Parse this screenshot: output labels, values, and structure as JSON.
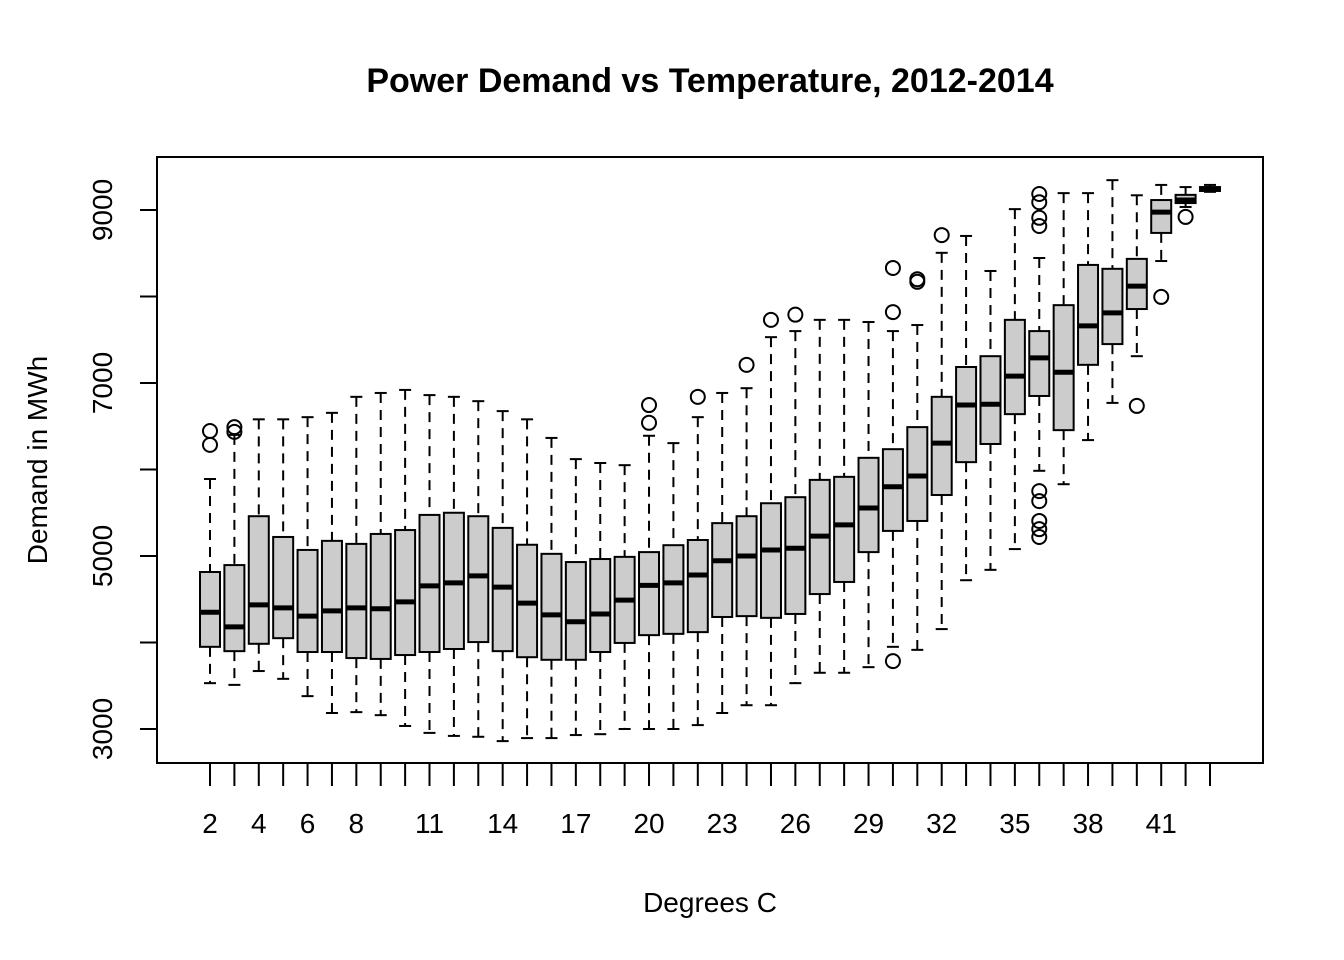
{
  "chart_data": {
    "type": "boxplot",
    "title": "Power Demand vs Temperature, 2012-2014",
    "xlabel": "Degrees C",
    "ylabel": "Demand in MWh",
    "ylim": [
      2620,
      9620
    ],
    "y_ticks": [
      3000,
      5000,
      7000,
      9000
    ],
    "y_tick_labels": [
      "3000",
      "5000",
      "7000",
      "9000"
    ],
    "y_minor_ticks": [
      4000,
      6000,
      8000
    ],
    "x_tick_labels_shown": [
      "2",
      "4",
      "6",
      "8",
      "11",
      "14",
      "17",
      "20",
      "23",
      "26",
      "29",
      "32",
      "35",
      "38",
      "41"
    ],
    "grid": false,
    "colors": {
      "box_fill": "#cccccc",
      "stroke": "#000000",
      "background": "#ffffff"
    },
    "categories": [
      2,
      3,
      4,
      5,
      6,
      7,
      8,
      9,
      10,
      11,
      12,
      13,
      14,
      15,
      16,
      17,
      18,
      19,
      20,
      21,
      22,
      23,
      24,
      25,
      26,
      27,
      28,
      29,
      30,
      31,
      32,
      33,
      34,
      35,
      36,
      37,
      38,
      39,
      40,
      41,
      42,
      43
    ],
    "boxes": [
      {
        "x": 2,
        "whisker_low": 3530,
        "q1": 3950,
        "median": 4350,
        "q3": 4815,
        "whisker_high": 5890,
        "outliers": [
          6445,
          6285
        ]
      },
      {
        "x": 3,
        "whisker_low": 3510,
        "q1": 3900,
        "median": 4180,
        "q3": 4895,
        "whisker_high": 6400,
        "outliers": [
          6490,
          6435
        ]
      },
      {
        "x": 4,
        "whisker_low": 3670,
        "q1": 3985,
        "median": 4435,
        "q3": 5460,
        "whisker_high": 6580,
        "outliers": []
      },
      {
        "x": 5,
        "whisker_low": 3580,
        "q1": 4050,
        "median": 4400,
        "q3": 5220,
        "whisker_high": 6580,
        "outliers": []
      },
      {
        "x": 6,
        "whisker_low": 3380,
        "q1": 3890,
        "median": 4305,
        "q3": 5070,
        "whisker_high": 6605,
        "outliers": []
      },
      {
        "x": 7,
        "whisker_low": 3185,
        "q1": 3890,
        "median": 4365,
        "q3": 5175,
        "whisker_high": 6655,
        "outliers": []
      },
      {
        "x": 8,
        "whisker_low": 3195,
        "q1": 3820,
        "median": 4400,
        "q3": 5140,
        "whisker_high": 6840,
        "outliers": []
      },
      {
        "x": 9,
        "whisker_low": 3160,
        "q1": 3810,
        "median": 4390,
        "q3": 5255,
        "whisker_high": 6885,
        "outliers": []
      },
      {
        "x": 10,
        "whisker_low": 3035,
        "q1": 3855,
        "median": 4470,
        "q3": 5300,
        "whisker_high": 6920,
        "outliers": []
      },
      {
        "x": 11,
        "whisker_low": 2955,
        "q1": 3890,
        "median": 4655,
        "q3": 5475,
        "whisker_high": 6860,
        "outliers": []
      },
      {
        "x": 12,
        "whisker_low": 2920,
        "q1": 3925,
        "median": 4690,
        "q3": 5500,
        "whisker_high": 6840,
        "outliers": []
      },
      {
        "x": 13,
        "whisker_low": 2910,
        "q1": 4005,
        "median": 4770,
        "q3": 5460,
        "whisker_high": 6790,
        "outliers": []
      },
      {
        "x": 14,
        "whisker_low": 2860,
        "q1": 3900,
        "median": 4640,
        "q3": 5325,
        "whisker_high": 6675,
        "outliers": []
      },
      {
        "x": 15,
        "whisker_low": 2895,
        "q1": 3830,
        "median": 4455,
        "q3": 5130,
        "whisker_high": 6580,
        "outliers": []
      },
      {
        "x": 16,
        "whisker_low": 2895,
        "q1": 3800,
        "median": 4320,
        "q3": 5025,
        "whisker_high": 6365,
        "outliers": []
      },
      {
        "x": 17,
        "whisker_low": 2930,
        "q1": 3800,
        "median": 4240,
        "q3": 4930,
        "whisker_high": 6120,
        "outliers": []
      },
      {
        "x": 18,
        "whisker_low": 2940,
        "q1": 3890,
        "median": 4330,
        "q3": 4965,
        "whisker_high": 6075,
        "outliers": []
      },
      {
        "x": 19,
        "whisker_low": 3000,
        "q1": 3995,
        "median": 4490,
        "q3": 4990,
        "whisker_high": 6050,
        "outliers": []
      },
      {
        "x": 20,
        "whisker_low": 3000,
        "q1": 4085,
        "median": 4660,
        "q3": 5045,
        "whisker_high": 6390,
        "outliers": [
          6745,
          6540
        ]
      },
      {
        "x": 21,
        "whisker_low": 3000,
        "q1": 4100,
        "median": 4690,
        "q3": 5125,
        "whisker_high": 6305,
        "outliers": []
      },
      {
        "x": 22,
        "whisker_low": 3045,
        "q1": 4120,
        "median": 4780,
        "q3": 5185,
        "whisker_high": 6605,
        "outliers": [
          6840
        ]
      },
      {
        "x": 23,
        "whisker_low": 3185,
        "q1": 4295,
        "median": 4945,
        "q3": 5380,
        "whisker_high": 6885,
        "outliers": []
      },
      {
        "x": 24,
        "whisker_low": 3275,
        "q1": 4305,
        "median": 5000,
        "q3": 5460,
        "whisker_high": 6940,
        "outliers": [
          7210
        ]
      },
      {
        "x": 25,
        "whisker_low": 3275,
        "q1": 4285,
        "median": 5070,
        "q3": 5610,
        "whisker_high": 7530,
        "outliers": [
          7730
        ]
      },
      {
        "x": 26,
        "whisker_low": 3530,
        "q1": 4330,
        "median": 5090,
        "q3": 5680,
        "whisker_high": 7600,
        "outliers": [
          7790
        ]
      },
      {
        "x": 27,
        "whisker_low": 3650,
        "q1": 4560,
        "median": 5230,
        "q3": 5880,
        "whisker_high": 7730,
        "outliers": []
      },
      {
        "x": 28,
        "whisker_low": 3650,
        "q1": 4700,
        "median": 5360,
        "q3": 5915,
        "whisker_high": 7730,
        "outliers": []
      },
      {
        "x": 29,
        "whisker_low": 3715,
        "q1": 5045,
        "median": 5555,
        "q3": 6135,
        "whisker_high": 7705,
        "outliers": []
      },
      {
        "x": 30,
        "whisker_low": 3950,
        "q1": 5290,
        "median": 5800,
        "q3": 6235,
        "whisker_high": 7600,
        "outliers": [
          8330,
          7820,
          3785
        ]
      },
      {
        "x": 31,
        "whisker_low": 3915,
        "q1": 5405,
        "median": 5925,
        "q3": 6490,
        "whisker_high": 7670,
        "outliers": [
          8200,
          8170
        ]
      },
      {
        "x": 32,
        "whisker_low": 4155,
        "q1": 5705,
        "median": 6305,
        "q3": 6840,
        "whisker_high": 8505,
        "outliers": [
          8710
        ]
      },
      {
        "x": 33,
        "whisker_low": 4720,
        "q1": 6085,
        "median": 6745,
        "q3": 7185,
        "whisker_high": 8700,
        "outliers": []
      },
      {
        "x": 34,
        "whisker_low": 4840,
        "q1": 6295,
        "median": 6755,
        "q3": 7310,
        "whisker_high": 8295,
        "outliers": []
      },
      {
        "x": 35,
        "whisker_low": 5080,
        "q1": 6640,
        "median": 7080,
        "q3": 7730,
        "whisker_high": 9010,
        "outliers": []
      },
      {
        "x": 36,
        "whisker_low": 5985,
        "q1": 6850,
        "median": 7290,
        "q3": 7600,
        "whisker_high": 8445,
        "outliers": [
          9185,
          9090,
          8910,
          8815,
          5750,
          5635,
          5405,
          5310,
          5220
        ]
      },
      {
        "x": 37,
        "whisker_low": 5830,
        "q1": 6455,
        "median": 7125,
        "q3": 7900,
        "whisker_high": 9195,
        "outliers": []
      },
      {
        "x": 38,
        "whisker_low": 6340,
        "q1": 7210,
        "median": 7660,
        "q3": 8365,
        "whisker_high": 9195,
        "outliers": []
      },
      {
        "x": 39,
        "whisker_low": 6770,
        "q1": 7450,
        "median": 7810,
        "q3": 8320,
        "whisker_high": 9345,
        "outliers": []
      },
      {
        "x": 40,
        "whisker_low": 7310,
        "q1": 7855,
        "median": 8120,
        "q3": 8435,
        "whisker_high": 9170,
        "outliers": [
          6735
        ]
      },
      {
        "x": 41,
        "whisker_low": 8410,
        "q1": 8735,
        "median": 8975,
        "q3": 9115,
        "whisker_high": 9290,
        "outliers": [
          7995
        ]
      },
      {
        "x": 42,
        "whisker_low": 9035,
        "q1": 9080,
        "median": 9115,
        "q3": 9175,
        "whisker_high": 9265,
        "outliers": [
          8920
        ]
      },
      {
        "x": 43,
        "whisker_low": 9210,
        "q1": 9220,
        "median": 9245,
        "q3": 9265,
        "whisker_high": 9290,
        "outliers": []
      }
    ]
  }
}
